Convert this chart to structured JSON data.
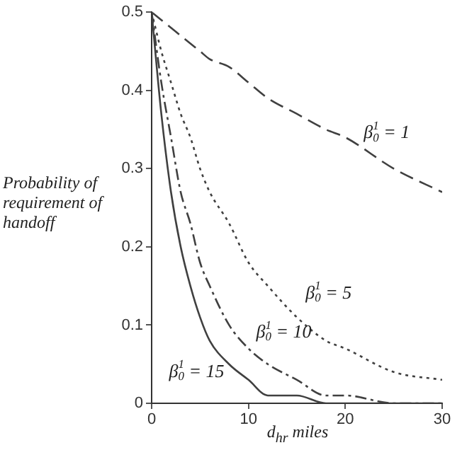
{
  "chart_data": {
    "type": "line",
    "xlabel": "d$_{hr}$ miles",
    "ylabel": "Probability of requirement of handoff",
    "x": [
      0,
      1,
      2,
      3,
      4,
      5,
      6,
      8,
      10,
      12,
      15,
      18,
      20,
      25,
      30
    ],
    "series": [
      {
        "color": "#404040",
        "line_style": "dashed",
        "values": [
          0.5,
          0.49,
          0.48,
          0.47,
          0.46,
          0.45,
          0.44,
          0.43,
          0.41,
          0.39,
          0.37,
          0.35,
          0.34,
          0.3,
          0.27
        ]
      },
      {
        "color": "#404040",
        "line_style": "dotted",
        "values": [
          0.5,
          0.45,
          0.41,
          0.37,
          0.34,
          0.3,
          0.27,
          0.23,
          0.18,
          0.15,
          0.11,
          0.08,
          0.07,
          0.04,
          0.03
        ]
      },
      {
        "color": "#404040",
        "line_style": "dashdot",
        "values": [
          0.5,
          0.41,
          0.34,
          0.27,
          0.23,
          0.18,
          0.15,
          0.1,
          0.07,
          0.05,
          0.03,
          0.01,
          0.01,
          0,
          0
        ]
      },
      {
        "color": "#404040",
        "line_style": "solid",
        "values": [
          0.5,
          0.37,
          0.27,
          0.2,
          0.15,
          0.11,
          0.08,
          0.05,
          0.03,
          0.01,
          0.01,
          0,
          0,
          0,
          0
        ]
      }
    ],
    "annotations": [
      "β$^{1}$$_{0}$ = 1",
      "β$^{1}$$_{0}$ = 5",
      "β$^{1}$$_{0}$ = 10",
      "β$^{1}$$_{0}$ = 15"
    ],
    "xlim": [
      0,
      30
    ],
    "xticks": [
      0,
      10,
      20,
      30
    ],
    "ylim": [
      0,
      0.5
    ],
    "yticks": [
      0,
      0.1,
      0.2,
      0.3,
      0.4,
      0.5
    ],
    "grid": false,
    "legend": false,
    "marker": "none"
  }
}
